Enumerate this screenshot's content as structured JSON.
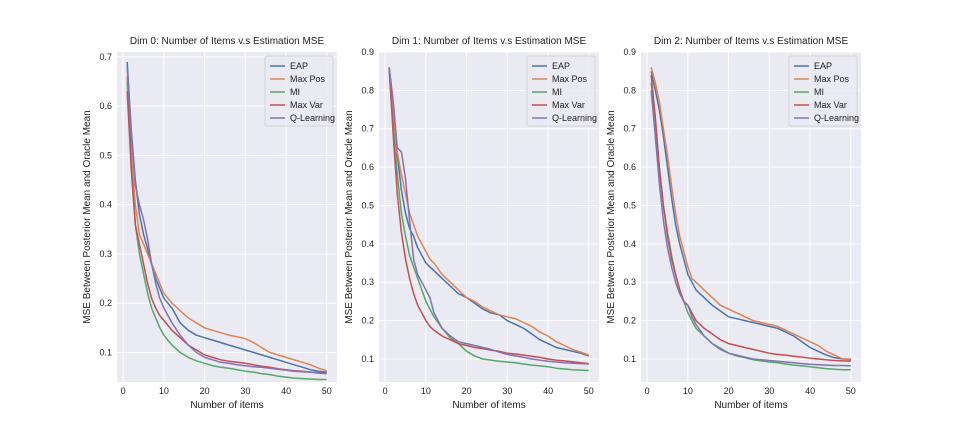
{
  "chart_data": [
    {
      "type": "line",
      "title": "Dim 0: Number of Items v.s Estimation MSE",
      "xlabel": "Number of items",
      "ylabel": "MSE Between Posterior Mean and Oracle Mean",
      "xlim": [
        -1.5,
        52.5
      ],
      "ylim": [
        0.04,
        0.71
      ],
      "xticks": [
        0,
        10,
        20,
        30,
        40,
        50
      ],
      "yticks": [
        0.1,
        0.2,
        0.3,
        0.4,
        0.5,
        0.6,
        0.7
      ],
      "ytick_labels": [
        "0.1",
        "0.2",
        "0.3",
        "0.4",
        "0.5",
        "0.6",
        "0.7"
      ],
      "grid": true,
      "legend_position": "top-right",
      "series": [
        {
          "name": "EAP",
          "x": [
            1,
            2,
            3,
            4,
            5,
            6,
            7,
            8,
            9,
            10,
            11,
            12,
            14,
            16,
            18,
            20,
            22,
            24,
            26,
            28,
            30,
            32,
            34,
            36,
            38,
            40,
            42,
            44,
            46,
            48,
            50
          ],
          "values": [
            0.69,
            0.55,
            0.45,
            0.38,
            0.34,
            0.31,
            0.28,
            0.25,
            0.23,
            0.21,
            0.2,
            0.19,
            0.16,
            0.145,
            0.135,
            0.13,
            0.125,
            0.12,
            0.115,
            0.11,
            0.105,
            0.1,
            0.095,
            0.09,
            0.085,
            0.08,
            0.075,
            0.07,
            0.065,
            0.062,
            0.06
          ]
        },
        {
          "name": "Max Pos",
          "x": [
            1,
            2,
            3,
            4,
            5,
            6,
            7,
            8,
            9,
            10,
            11,
            12,
            14,
            16,
            18,
            20,
            22,
            24,
            26,
            28,
            30,
            32,
            34,
            36,
            38,
            40,
            42,
            44,
            46,
            48,
            50
          ],
          "values": [
            0.66,
            0.5,
            0.4,
            0.34,
            0.32,
            0.3,
            0.28,
            0.26,
            0.24,
            0.22,
            0.21,
            0.2,
            0.185,
            0.17,
            0.16,
            0.15,
            0.145,
            0.14,
            0.135,
            0.132,
            0.128,
            0.12,
            0.11,
            0.1,
            0.095,
            0.09,
            0.085,
            0.08,
            0.075,
            0.068,
            0.063
          ]
        },
        {
          "name": "MI",
          "x": [
            1,
            2,
            3,
            4,
            5,
            6,
            7,
            8,
            9,
            10,
            11,
            12,
            14,
            16,
            18,
            20,
            22,
            24,
            26,
            28,
            30,
            32,
            34,
            36,
            38,
            40,
            42,
            44,
            46,
            48,
            50
          ],
          "values": [
            0.65,
            0.48,
            0.36,
            0.3,
            0.26,
            0.22,
            0.19,
            0.17,
            0.15,
            0.135,
            0.125,
            0.115,
            0.1,
            0.09,
            0.083,
            0.078,
            0.073,
            0.07,
            0.068,
            0.065,
            0.062,
            0.06,
            0.057,
            0.055,
            0.052,
            0.05,
            0.048,
            0.047,
            0.046,
            0.045,
            0.045
          ]
        },
        {
          "name": "Max Var",
          "x": [
            1,
            2,
            3,
            4,
            5,
            6,
            7,
            8,
            9,
            10,
            11,
            12,
            14,
            16,
            18,
            20,
            22,
            24,
            26,
            28,
            30,
            32,
            34,
            36,
            38,
            40,
            42,
            44,
            46,
            48,
            50
          ],
          "values": [
            0.63,
            0.47,
            0.36,
            0.32,
            0.28,
            0.24,
            0.21,
            0.19,
            0.175,
            0.165,
            0.155,
            0.145,
            0.13,
            0.115,
            0.105,
            0.095,
            0.09,
            0.085,
            0.082,
            0.08,
            0.078,
            0.075,
            0.072,
            0.07,
            0.067,
            0.065,
            0.063,
            0.062,
            0.06,
            0.058,
            0.057
          ]
        },
        {
          "name": "Q-Learning",
          "x": [
            1,
            2,
            3,
            4,
            5,
            6,
            7,
            8,
            9,
            10,
            11,
            12,
            14,
            16,
            18,
            20,
            22,
            24,
            26,
            28,
            30,
            32,
            34,
            36,
            38,
            40,
            42,
            44,
            46,
            48,
            50
          ],
          "values": [
            0.68,
            0.54,
            0.44,
            0.4,
            0.37,
            0.33,
            0.28,
            0.24,
            0.21,
            0.19,
            0.175,
            0.16,
            0.135,
            0.115,
            0.1,
            0.09,
            0.085,
            0.08,
            0.078,
            0.075,
            0.073,
            0.071,
            0.07,
            0.068,
            0.066,
            0.064,
            0.062,
            0.061,
            0.06,
            0.059,
            0.058
          ]
        }
      ]
    },
    {
      "type": "line",
      "title": "Dim 1: Number of Items v.s Estimation MSE",
      "xlabel": "Number of items",
      "ylabel": "MSE Between Posterior Mean and Oracle Mean",
      "xlim": [
        -1.5,
        52.5
      ],
      "ylim": [
        0.04,
        0.9
      ],
      "xticks": [
        0,
        10,
        20,
        30,
        40,
        50
      ],
      "yticks": [
        0.1,
        0.2,
        0.3,
        0.4,
        0.5,
        0.6,
        0.7,
        0.8,
        0.9
      ],
      "ytick_labels": [
        "0.1",
        "0.2",
        "0.3",
        "0.4",
        "0.5",
        "0.6",
        "0.7",
        "0.8",
        "0.9"
      ],
      "grid": true,
      "legend_position": "top-right",
      "series": [
        {
          "name": "EAP",
          "x": [
            1,
            2,
            3,
            4,
            5,
            6,
            7,
            8,
            9,
            10,
            11,
            12,
            14,
            16,
            18,
            20,
            22,
            24,
            26,
            28,
            30,
            32,
            34,
            36,
            38,
            40,
            42,
            44,
            46,
            48,
            50
          ],
          "values": [
            0.86,
            0.75,
            0.63,
            0.54,
            0.48,
            0.44,
            0.42,
            0.39,
            0.37,
            0.35,
            0.34,
            0.33,
            0.31,
            0.29,
            0.27,
            0.26,
            0.245,
            0.23,
            0.22,
            0.215,
            0.2,
            0.19,
            0.18,
            0.165,
            0.15,
            0.14,
            0.13,
            0.125,
            0.12,
            0.115,
            0.108
          ]
        },
        {
          "name": "Max Pos",
          "x": [
            1,
            2,
            3,
            4,
            5,
            6,
            7,
            8,
            9,
            10,
            11,
            12,
            14,
            16,
            18,
            20,
            22,
            24,
            26,
            28,
            30,
            32,
            34,
            36,
            38,
            40,
            42,
            44,
            46,
            48,
            50
          ],
          "values": [
            0.86,
            0.73,
            0.64,
            0.58,
            0.53,
            0.48,
            0.45,
            0.42,
            0.4,
            0.38,
            0.36,
            0.35,
            0.32,
            0.3,
            0.28,
            0.26,
            0.25,
            0.235,
            0.225,
            0.215,
            0.21,
            0.205,
            0.195,
            0.185,
            0.17,
            0.16,
            0.145,
            0.135,
            0.125,
            0.118,
            0.11
          ]
        },
        {
          "name": "MI",
          "x": [
            1,
            2,
            3,
            4,
            5,
            6,
            7,
            8,
            9,
            10,
            11,
            12,
            14,
            16,
            18,
            20,
            22,
            24,
            26,
            28,
            30,
            32,
            34,
            36,
            38,
            40,
            42,
            44,
            46,
            48,
            50
          ],
          "values": [
            0.85,
            0.7,
            0.58,
            0.48,
            0.42,
            0.37,
            0.34,
            0.31,
            0.28,
            0.25,
            0.23,
            0.21,
            0.18,
            0.155,
            0.14,
            0.12,
            0.108,
            0.1,
            0.097,
            0.094,
            0.092,
            0.09,
            0.087,
            0.084,
            0.082,
            0.08,
            0.076,
            0.074,
            0.072,
            0.071,
            0.07
          ]
        },
        {
          "name": "Max Var",
          "x": [
            1,
            2,
            3,
            4,
            5,
            6,
            7,
            8,
            9,
            10,
            11,
            12,
            14,
            16,
            18,
            20,
            22,
            24,
            26,
            28,
            30,
            32,
            34,
            36,
            38,
            40,
            42,
            44,
            46,
            48,
            50
          ],
          "values": [
            0.86,
            0.68,
            0.53,
            0.43,
            0.36,
            0.31,
            0.27,
            0.24,
            0.22,
            0.2,
            0.185,
            0.175,
            0.16,
            0.15,
            0.14,
            0.135,
            0.13,
            0.127,
            0.123,
            0.12,
            0.115,
            0.113,
            0.11,
            0.107,
            0.104,
            0.1,
            0.097,
            0.095,
            0.093,
            0.09,
            0.088
          ]
        },
        {
          "name": "Q-Learning",
          "x": [
            1,
            2,
            3,
            4,
            5,
            6,
            7,
            8,
            9,
            10,
            11,
            12,
            14,
            16,
            18,
            20,
            22,
            24,
            26,
            28,
            30,
            32,
            34,
            36,
            38,
            40,
            42,
            44,
            46,
            48,
            50
          ],
          "values": [
            0.86,
            0.77,
            0.65,
            0.64,
            0.57,
            0.46,
            0.36,
            0.32,
            0.3,
            0.28,
            0.26,
            0.22,
            0.18,
            0.16,
            0.145,
            0.14,
            0.135,
            0.13,
            0.125,
            0.118,
            0.112,
            0.108,
            0.104,
            0.1,
            0.097,
            0.094,
            0.092,
            0.09,
            0.089,
            0.088,
            0.087
          ]
        }
      ]
    },
    {
      "type": "line",
      "title": "Dim 2: Number of Items v.s Estimation MSE",
      "xlabel": "Number of items",
      "ylabel": "MSE Between Posterior Mean and Oracle Mean",
      "xlim": [
        -1.5,
        52.5
      ],
      "ylim": [
        0.04,
        0.9
      ],
      "xticks": [
        0,
        10,
        20,
        30,
        40,
        50
      ],
      "yticks": [
        0.1,
        0.2,
        0.3,
        0.4,
        0.5,
        0.6,
        0.7,
        0.8,
        0.9
      ],
      "ytick_labels": [
        "0.1",
        "0.2",
        "0.3",
        "0.4",
        "0.5",
        "0.6",
        "0.7",
        "0.8",
        "0.9"
      ],
      "grid": true,
      "legend_position": "top-right",
      "series": [
        {
          "name": "EAP",
          "x": [
            1,
            2,
            3,
            4,
            5,
            6,
            7,
            8,
            9,
            10,
            11,
            12,
            14,
            16,
            18,
            20,
            22,
            24,
            26,
            28,
            30,
            32,
            34,
            36,
            38,
            40,
            42,
            44,
            46,
            48,
            50
          ],
          "values": [
            0.85,
            0.8,
            0.75,
            0.68,
            0.6,
            0.52,
            0.45,
            0.4,
            0.36,
            0.32,
            0.3,
            0.28,
            0.26,
            0.24,
            0.225,
            0.21,
            0.205,
            0.2,
            0.195,
            0.19,
            0.185,
            0.18,
            0.17,
            0.16,
            0.145,
            0.13,
            0.12,
            0.11,
            0.103,
            0.1,
            0.098
          ]
        },
        {
          "name": "Max Pos",
          "x": [
            1,
            2,
            3,
            4,
            5,
            6,
            7,
            8,
            9,
            10,
            11,
            12,
            14,
            16,
            18,
            20,
            22,
            24,
            26,
            28,
            30,
            32,
            34,
            36,
            38,
            40,
            42,
            44,
            46,
            48,
            50
          ],
          "values": [
            0.86,
            0.82,
            0.77,
            0.7,
            0.63,
            0.55,
            0.48,
            0.42,
            0.38,
            0.34,
            0.31,
            0.3,
            0.28,
            0.26,
            0.24,
            0.23,
            0.22,
            0.21,
            0.2,
            0.195,
            0.19,
            0.185,
            0.175,
            0.165,
            0.155,
            0.145,
            0.135,
            0.12,
            0.11,
            0.1,
            0.1
          ]
        },
        {
          "name": "MI",
          "x": [
            1,
            2,
            3,
            4,
            5,
            6,
            7,
            8,
            9,
            10,
            11,
            12,
            14,
            16,
            18,
            20,
            22,
            24,
            26,
            28,
            30,
            32,
            34,
            36,
            38,
            40,
            42,
            44,
            46,
            48,
            50
          ],
          "values": [
            0.82,
            0.72,
            0.6,
            0.5,
            0.43,
            0.37,
            0.32,
            0.28,
            0.25,
            0.22,
            0.2,
            0.18,
            0.16,
            0.14,
            0.128,
            0.115,
            0.108,
            0.103,
            0.098,
            0.095,
            0.092,
            0.09,
            0.087,
            0.084,
            0.082,
            0.08,
            0.077,
            0.075,
            0.073,
            0.072,
            0.072
          ]
        },
        {
          "name": "Max Var",
          "x": [
            1,
            2,
            3,
            4,
            5,
            6,
            7,
            8,
            9,
            10,
            11,
            12,
            14,
            16,
            18,
            20,
            22,
            24,
            26,
            28,
            30,
            32,
            34,
            36,
            38,
            40,
            42,
            44,
            46,
            48,
            50
          ],
          "values": [
            0.84,
            0.73,
            0.6,
            0.5,
            0.42,
            0.36,
            0.32,
            0.28,
            0.25,
            0.24,
            0.22,
            0.2,
            0.18,
            0.165,
            0.15,
            0.14,
            0.135,
            0.13,
            0.125,
            0.12,
            0.115,
            0.112,
            0.11,
            0.107,
            0.105,
            0.102,
            0.1,
            0.098,
            0.096,
            0.095,
            0.094
          ]
        },
        {
          "name": "Q-Learning",
          "x": [
            1,
            2,
            3,
            4,
            5,
            6,
            7,
            8,
            9,
            10,
            11,
            12,
            14,
            16,
            18,
            20,
            22,
            24,
            26,
            28,
            30,
            32,
            34,
            36,
            38,
            40,
            42,
            44,
            46,
            48,
            50
          ],
          "values": [
            0.8,
            0.68,
            0.56,
            0.46,
            0.39,
            0.34,
            0.3,
            0.27,
            0.25,
            0.24,
            0.21,
            0.19,
            0.16,
            0.14,
            0.125,
            0.115,
            0.11,
            0.105,
            0.1,
            0.098,
            0.096,
            0.094,
            0.092,
            0.09,
            0.088,
            0.086,
            0.085,
            0.084,
            0.083,
            0.083,
            0.082
          ]
        }
      ]
    }
  ],
  "colors": {
    "EAP": "#4c72b0",
    "Max Pos": "#dd8452",
    "MI": "#55a868",
    "Max Var": "#c44e52",
    "Q-Learning": "#8172b3",
    "plot_bg": "#eaeaf2",
    "grid": "#ffffff"
  }
}
